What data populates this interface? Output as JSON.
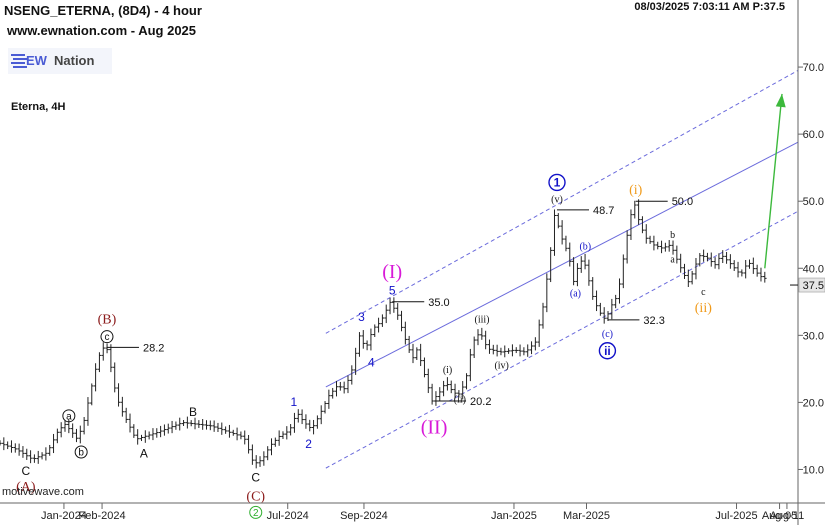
{
  "header": {
    "title": "NSENG_ETERNA, (8D4) - 4 hour",
    "website": "www.ewnation.com  - Aug 2025",
    "timestamp": "08/03/2025 7:03:11 AM  P:37.5",
    "logo_ew": "EW",
    "logo_nation": "Nation",
    "symbol_name": "Eterna, 4H"
  },
  "footer": {
    "watermark": "motivewave.com"
  },
  "colors": {
    "price_bar": "#222222",
    "channel": "#6b6bdc",
    "arrow": "#3cb93c",
    "wave_blue": "#1212c8",
    "wave_magenta": "#d81ad8",
    "wave_orange": "#f09a1a",
    "wave_brown": "#8b1a1a",
    "wave_green": "#2eae2e",
    "price_tag_bg": "#e6e6e6"
  },
  "chart_data": {
    "type": "ohlc",
    "xlabel": "",
    "ylabel": "",
    "ylim": [
      5,
      80
    ],
    "xlim": [
      "2023-11-10",
      "2025-08-20"
    ],
    "grid": false,
    "y_axis_position": "right",
    "y_ticks": [
      "10.0",
      "20.0",
      "30.0",
      "40.0",
      "50.0",
      "60.0",
      "70.0"
    ],
    "x_ticks": [
      {
        "label": "Jan-2024",
        "date": "2024-01-01"
      },
      {
        "label": "Feb-2024",
        "date": "2024-02-01"
      },
      {
        "label": "Jul-2024",
        "date": "2024-07-01"
      },
      {
        "label": "Sep-2024",
        "date": "2024-09-01"
      },
      {
        "label": "Jan-2025",
        "date": "2025-01-01"
      },
      {
        "label": "Mar-2025",
        "date": "2025-03-01"
      },
      {
        "label": "Jul-2025",
        "date": "2025-07-01"
      },
      {
        "label": "Aug-05",
        "date": "2025-08-05"
      },
      {
        "label": "Aug-11",
        "date": "2025-08-11"
      }
    ],
    "current_price": {
      "value": 37.5,
      "label": "37.5"
    },
    "price_path": [
      [
        "2023-11-10",
        14.0
      ],
      [
        "2023-11-25",
        13.0
      ],
      [
        "2023-12-08",
        11.5
      ],
      [
        "2023-12-20",
        12.5
      ],
      [
        "2023-12-28",
        15.5
      ],
      [
        "2024-01-03",
        16.8
      ],
      [
        "2024-01-08",
        15.8
      ],
      [
        "2024-01-13",
        14.6
      ],
      [
        "2024-01-18",
        16.5
      ],
      [
        "2024-01-24",
        21.5
      ],
      [
        "2024-01-29",
        25.5
      ],
      [
        "2024-02-02",
        28.0
      ],
      [
        "2024-02-05",
        28.2
      ],
      [
        "2024-02-07",
        27.8
      ],
      [
        "2024-02-10",
        25.0
      ],
      [
        "2024-02-14",
        21.0
      ],
      [
        "2024-02-18",
        19.0
      ],
      [
        "2024-02-24",
        16.8
      ],
      [
        "2024-03-01",
        14.5
      ],
      [
        "2024-03-18",
        15.5
      ],
      [
        "2024-04-08",
        17.0
      ],
      [
        "2024-05-01",
        16.5
      ],
      [
        "2024-05-28",
        14.8
      ],
      [
        "2024-06-05",
        10.8
      ],
      [
        "2024-06-12",
        11.5
      ],
      [
        "2024-06-18",
        13.5
      ],
      [
        "2024-06-26",
        15.0
      ],
      [
        "2024-07-04",
        15.8
      ],
      [
        "2024-07-10",
        18.5
      ],
      [
        "2024-07-16",
        17.0
      ],
      [
        "2024-07-22",
        16.0
      ],
      [
        "2024-07-28",
        18.0
      ],
      [
        "2024-08-05",
        21.0
      ],
      [
        "2024-08-12",
        22.5
      ],
      [
        "2024-08-18",
        22.0
      ],
      [
        "2024-08-24",
        25.0
      ],
      [
        "2024-08-30",
        30.0
      ],
      [
        "2024-09-04",
        28.0
      ],
      [
        "2024-09-10",
        31.0
      ],
      [
        "2024-09-16",
        32.0
      ],
      [
        "2024-09-20",
        33.5
      ],
      [
        "2024-09-24",
        35.0
      ],
      [
        "2024-09-30",
        33.0
      ],
      [
        "2024-10-06",
        29.5
      ],
      [
        "2024-10-12",
        26.5
      ],
      [
        "2024-10-16",
        28.0
      ],
      [
        "2024-10-22",
        24.0
      ],
      [
        "2024-10-28",
        20.2
      ],
      [
        "2024-11-03",
        21.5
      ],
      [
        "2024-11-08",
        23.0
      ],
      [
        "2024-11-13",
        21.8
      ],
      [
        "2024-11-18",
        21.0
      ],
      [
        "2024-11-24",
        23.0
      ],
      [
        "2024-11-30",
        29.0
      ],
      [
        "2024-12-06",
        30.5
      ],
      [
        "2024-12-12",
        28.0
      ],
      [
        "2024-12-22",
        27.5
      ],
      [
        "2025-01-03",
        27.8
      ],
      [
        "2025-01-12",
        27.5
      ],
      [
        "2025-01-20",
        29.0
      ],
      [
        "2025-01-26",
        34.0
      ],
      [
        "2025-02-01",
        42.0
      ],
      [
        "2025-02-05",
        48.7
      ],
      [
        "2025-02-09",
        45.0
      ],
      [
        "2025-02-13",
        43.5
      ],
      [
        "2025-02-17",
        41.0
      ],
      [
        "2025-02-20",
        38.0
      ],
      [
        "2025-02-24",
        40.5
      ],
      [
        "2025-02-28",
        41.5
      ],
      [
        "2025-03-04",
        38.5
      ],
      [
        "2025-03-08",
        35.5
      ],
      [
        "2025-03-13",
        33.5
      ],
      [
        "2025-03-18",
        32.3
      ],
      [
        "2025-03-23",
        34.5
      ],
      [
        "2025-03-28",
        36.0
      ],
      [
        "2025-04-02",
        42.0
      ],
      [
        "2025-04-06",
        46.5
      ],
      [
        "2025-04-10",
        50.0
      ],
      [
        "2025-04-15",
        46.5
      ],
      [
        "2025-04-20",
        44.5
      ],
      [
        "2025-04-26",
        43.5
      ],
      [
        "2025-05-03",
        43.0
      ],
      [
        "2025-05-10",
        43.5
      ],
      [
        "2025-05-17",
        40.5
      ],
      [
        "2025-05-21",
        39.0
      ],
      [
        "2025-05-25",
        37.8
      ],
      [
        "2025-05-29",
        40.0
      ],
      [
        "2025-06-03",
        42.0
      ],
      [
        "2025-06-09",
        41.5
      ],
      [
        "2025-06-15",
        40.5
      ],
      [
        "2025-06-20",
        42.0
      ],
      [
        "2025-06-26",
        41.0
      ],
      [
        "2025-07-01",
        40.0
      ],
      [
        "2025-07-06",
        39.0
      ],
      [
        "2025-07-12",
        41.0
      ],
      [
        "2025-07-18",
        39.5
      ],
      [
        "2025-07-24",
        38.5
      ]
    ],
    "swing_labels": [
      {
        "text": "28.2",
        "date": "2024-02-05",
        "price": 28.2
      },
      {
        "text": "35.0",
        "date": "2024-09-24",
        "price": 35.0
      },
      {
        "text": "20.2",
        "date": "2024-10-28",
        "price": 20.2
      },
      {
        "text": "48.7",
        "date": "2025-02-05",
        "price": 48.7
      },
      {
        "text": "32.3",
        "date": "2025-03-18",
        "price": 32.3
      },
      {
        "text": "50.0",
        "date": "2025-04-10",
        "price": 50.0
      }
    ],
    "channel": {
      "middle": [
        [
          "2024-08-01",
          22.3
        ],
        [
          "2025-08-20",
          58.8
        ]
      ],
      "upper": [
        [
          "2024-08-01",
          30.3
        ],
        [
          "2025-08-20",
          69.5
        ]
      ],
      "lower": [
        [
          "2024-08-01",
          10.2
        ],
        [
          "2025-08-20",
          48.5
        ]
      ]
    },
    "projection_arrow": {
      "from": [
        "2025-07-24",
        40.0
      ],
      "to": [
        "2025-08-07",
        66.0
      ]
    },
    "wave_labels": [
      {
        "text": "(A)",
        "date": "2023-12-01",
        "price": 7.5,
        "color": "wave_brown",
        "style": "plain"
      },
      {
        "text": "C",
        "date": "2023-12-01",
        "price": 9.8,
        "color": "wave_black",
        "style": "plain"
      },
      {
        "text": "a",
        "date": "2024-01-05",
        "price": 18.0,
        "color": "wave_black",
        "style": "circle"
      },
      {
        "text": "b",
        "date": "2024-01-15",
        "price": 12.6,
        "color": "wave_black",
        "style": "circle"
      },
      {
        "text": "(B)",
        "date": "2024-02-05",
        "price": 32.5,
        "color": "wave_brown",
        "style": "plain"
      },
      {
        "text": "c",
        "date": "2024-02-05",
        "price": 29.8,
        "color": "wave_black",
        "style": "circle"
      },
      {
        "text": "A",
        "date": "2024-03-06",
        "price": 12.4,
        "color": "wave_black",
        "style": "plain"
      },
      {
        "text": "B",
        "date": "2024-04-15",
        "price": 18.6,
        "color": "wave_black",
        "style": "plain"
      },
      {
        "text": "C",
        "date": "2024-06-05",
        "price": 8.8,
        "color": "wave_black",
        "style": "plain"
      },
      {
        "text": "(C)",
        "date": "2024-06-05",
        "price": 6.1,
        "color": "wave_brown",
        "style": "plain"
      },
      {
        "text": "2",
        "date": "2024-06-05",
        "price": 3.6,
        "color": "wave_green",
        "style": "circle"
      },
      {
        "text": "1",
        "date": "2024-07-06",
        "price": 20.1,
        "color": "wave_blue",
        "style": "plain"
      },
      {
        "text": "2",
        "date": "2024-07-18",
        "price": 13.8,
        "color": "wave_blue",
        "style": "plain"
      },
      {
        "text": "3",
        "date": "2024-08-30",
        "price": 32.8,
        "color": "wave_blue",
        "style": "plain"
      },
      {
        "text": "4",
        "date": "2024-09-07",
        "price": 26.0,
        "color": "wave_blue",
        "style": "plain"
      },
      {
        "text": "5",
        "date": "2024-09-24",
        "price": 36.7,
        "color": "wave_blue",
        "style": "plain"
      },
      {
        "text": "(I)",
        "date": "2024-09-24",
        "price": 39.6,
        "color": "wave_magenta",
        "style": "plain-large"
      },
      {
        "text": "(II)",
        "date": "2024-10-28",
        "price": 16.4,
        "color": "wave_magenta",
        "style": "plain-large"
      },
      {
        "text": "(i)",
        "date": "2024-11-08",
        "price": 24.9,
        "color": "wave_black",
        "style": "plain-small"
      },
      {
        "text": "(ii)",
        "date": "2024-11-18",
        "price": 20.5,
        "color": "wave_black",
        "style": "plain-small"
      },
      {
        "text": "(iii)",
        "date": "2024-12-06",
        "price": 32.4,
        "color": "wave_black",
        "style": "plain-small"
      },
      {
        "text": "(iv)",
        "date": "2024-12-22",
        "price": 25.6,
        "color": "wave_black",
        "style": "plain-small"
      },
      {
        "text": "(v)",
        "date": "2025-02-05",
        "price": 50.3,
        "color": "wave_black",
        "style": "plain-small"
      },
      {
        "text": "1",
        "date": "2025-02-05",
        "price": 52.8,
        "color": "wave_blue",
        "style": "circle"
      },
      {
        "text": "(a)",
        "date": "2025-02-20",
        "price": 36.3,
        "color": "wave_blue",
        "style": "plain-small"
      },
      {
        "text": "(b)",
        "date": "2025-02-28",
        "price": 43.3,
        "color": "wave_blue",
        "style": "plain-small"
      },
      {
        "text": "(c)",
        "date": "2025-03-18",
        "price": 30.3,
        "color": "wave_blue",
        "style": "plain-small"
      },
      {
        "text": "ii",
        "date": "2025-03-18",
        "price": 27.7,
        "color": "wave_blue",
        "style": "circle"
      },
      {
        "text": "(i)",
        "date": "2025-04-10",
        "price": 51.8,
        "color": "wave_orange",
        "style": "plain"
      },
      {
        "text": "b",
        "date": "2025-05-10",
        "price": 45.0,
        "color": "wave_black",
        "style": "plain-small"
      },
      {
        "text": "a",
        "date": "2025-05-10",
        "price": 41.4,
        "color": "wave_black",
        "style": "plain-small"
      },
      {
        "text": "c",
        "date": "2025-06-04",
        "price": 36.5,
        "color": "wave_black",
        "style": "plain-small"
      },
      {
        "text": "(ii)",
        "date": "2025-06-04",
        "price": 34.2,
        "color": "wave_orange",
        "style": "plain"
      }
    ]
  }
}
